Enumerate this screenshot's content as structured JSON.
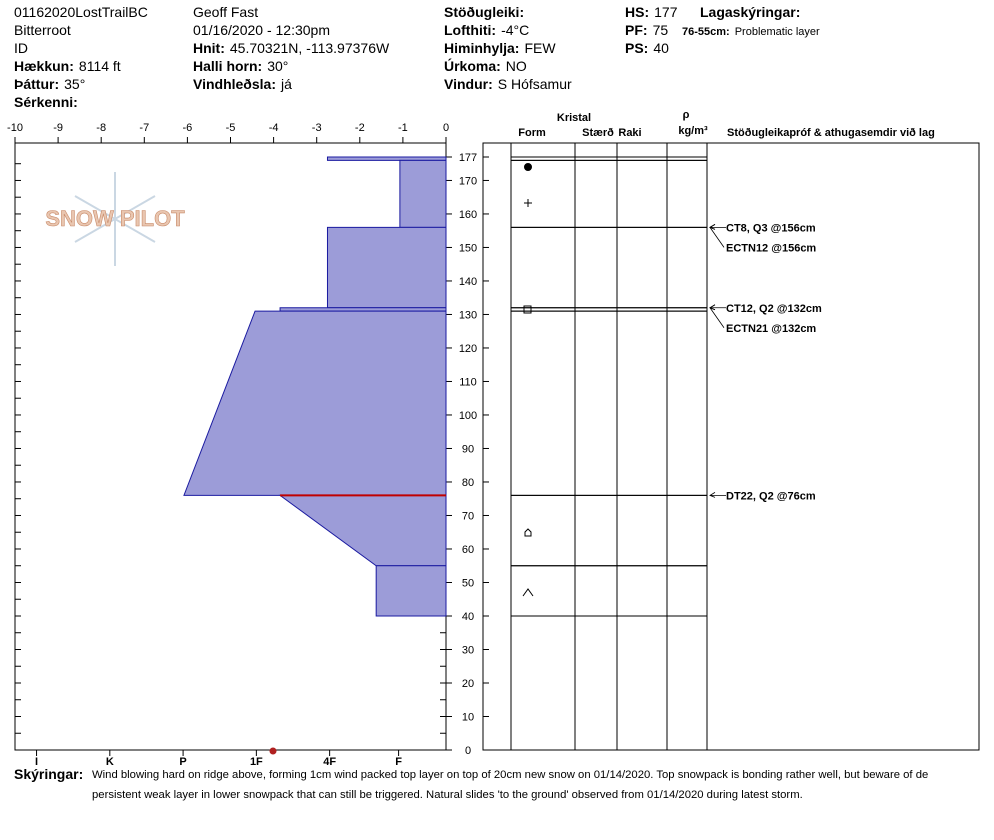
{
  "header": {
    "lines": [
      "01162020LostTrailBC",
      "Bitterroot",
      "ID",
      "Geoff Fast",
      "01/16/2020 - 12:30pm"
    ],
    "fields": [
      {
        "label": "Hækkun:",
        "value": "8114 ft"
      },
      {
        "label": "Þáttur:",
        "value": "35°"
      },
      {
        "label": "Sérkenni:"
      },
      {
        "label": "Hnit:",
        "value": "45.70321N, -113.97376W"
      },
      {
        "label": "Halli horn:",
        "value": "30°"
      },
      {
        "label": "Vindhleðsla:",
        "value": "já"
      },
      {
        "label": "Stöðugleiki:"
      },
      {
        "label": "Lofthiti:",
        "value": "-4°C"
      },
      {
        "label": "Himinhylja:",
        "value": "FEW"
      },
      {
        "label": "Úrkoma:",
        "value": "NO"
      },
      {
        "label": "Vindur:",
        "value": "S Hófsamur"
      },
      {
        "label": "HS:",
        "value": 177
      },
      {
        "label": "PF:",
        "value": 75
      },
      {
        "label": "PS:",
        "value": 40
      },
      {
        "label": "Lagaskýringar:"
      }
    ],
    "layer_notes": [
      {
        "label": "76-55cm:",
        "value": "Problematic layer"
      }
    ]
  },
  "logo": "SNOW PILOT",
  "profile": {
    "hardness_lim": [
      -10,
      0
    ],
    "hardness_ticks": [
      -10,
      -9,
      -8,
      -7,
      -6,
      -5,
      -4,
      -3,
      -2,
      -1,
      0
    ],
    "hardness_classes": [
      {
        "value": -9.5,
        "label": "I"
      },
      {
        "value": -7.8,
        "label": "K"
      },
      {
        "value": -6.1,
        "label": "P"
      },
      {
        "value": -4.4,
        "label": "1F"
      },
      {
        "value": -2.7,
        "label": "4F"
      },
      {
        "value": -1.1,
        "label": "F"
      }
    ],
    "depth_lim": [
      0,
      177
    ],
    "depth_ticks": [
      0,
      10,
      20,
      30,
      40,
      50,
      60,
      70,
      80,
      90,
      100,
      110,
      120,
      130,
      140,
      150,
      160,
      170,
      177
    ],
    "layers": [
      {
        "top": 177,
        "bottom": 176,
        "hardness_top": -2.75,
        "hardness_bottom": -2.75
      },
      {
        "top": 176,
        "bottom": 156,
        "hardness_top": -1.07,
        "hardness_bottom": -1.07
      },
      {
        "top": 156,
        "bottom": 132,
        "hardness_top": -2.75,
        "hardness_bottom": -2.75
      },
      {
        "top": 132,
        "bottom": 131,
        "hardness_top": -3.85,
        "hardness_bottom": -3.85
      },
      {
        "top": 131,
        "bottom": 76,
        "hardness_top": -4.43,
        "hardness_bottom": -6.08
      },
      {
        "top": 76,
        "bottom": 55,
        "hardness_top": -3.85,
        "hardness_bottom": -1.62
      },
      {
        "top": 55,
        "bottom": 40,
        "hardness_top": -1.62,
        "hardness_bottom": -1.62
      }
    ],
    "problem_depth": 76,
    "columns": [
      "Kristal",
      "Form",
      "Stærð",
      "Raki",
      "ρ",
      "kg/m³",
      "Stöðugleikapróf & athugasemdir við lag"
    ],
    "tests": [
      {
        "label": "CT8, Q3 @156cm",
        "depth": 156
      },
      {
        "label": "ECTN12 @156cm",
        "depth": 156
      },
      {
        "label": "CT12, Q2 @132cm",
        "depth": 132
      },
      {
        "label": "ECTN21 @132cm",
        "depth": 132
      },
      {
        "label": "DT22, Q2 @76cm",
        "depth": 76
      }
    ]
  },
  "notes": {
    "label": "Skýringar:",
    "lines": [
      "Wind blowing hard on ridge above, forming 1cm wind packed top layer on top of 20cm new snow on 01/14/2020. Top snowpack is bonding rather well, but beware of de",
      "persistent weak layer in lower snowpack that can still be triggered. Natural slides 'to the ground' observed from 01/14/2020 during latest storm."
    ]
  }
}
